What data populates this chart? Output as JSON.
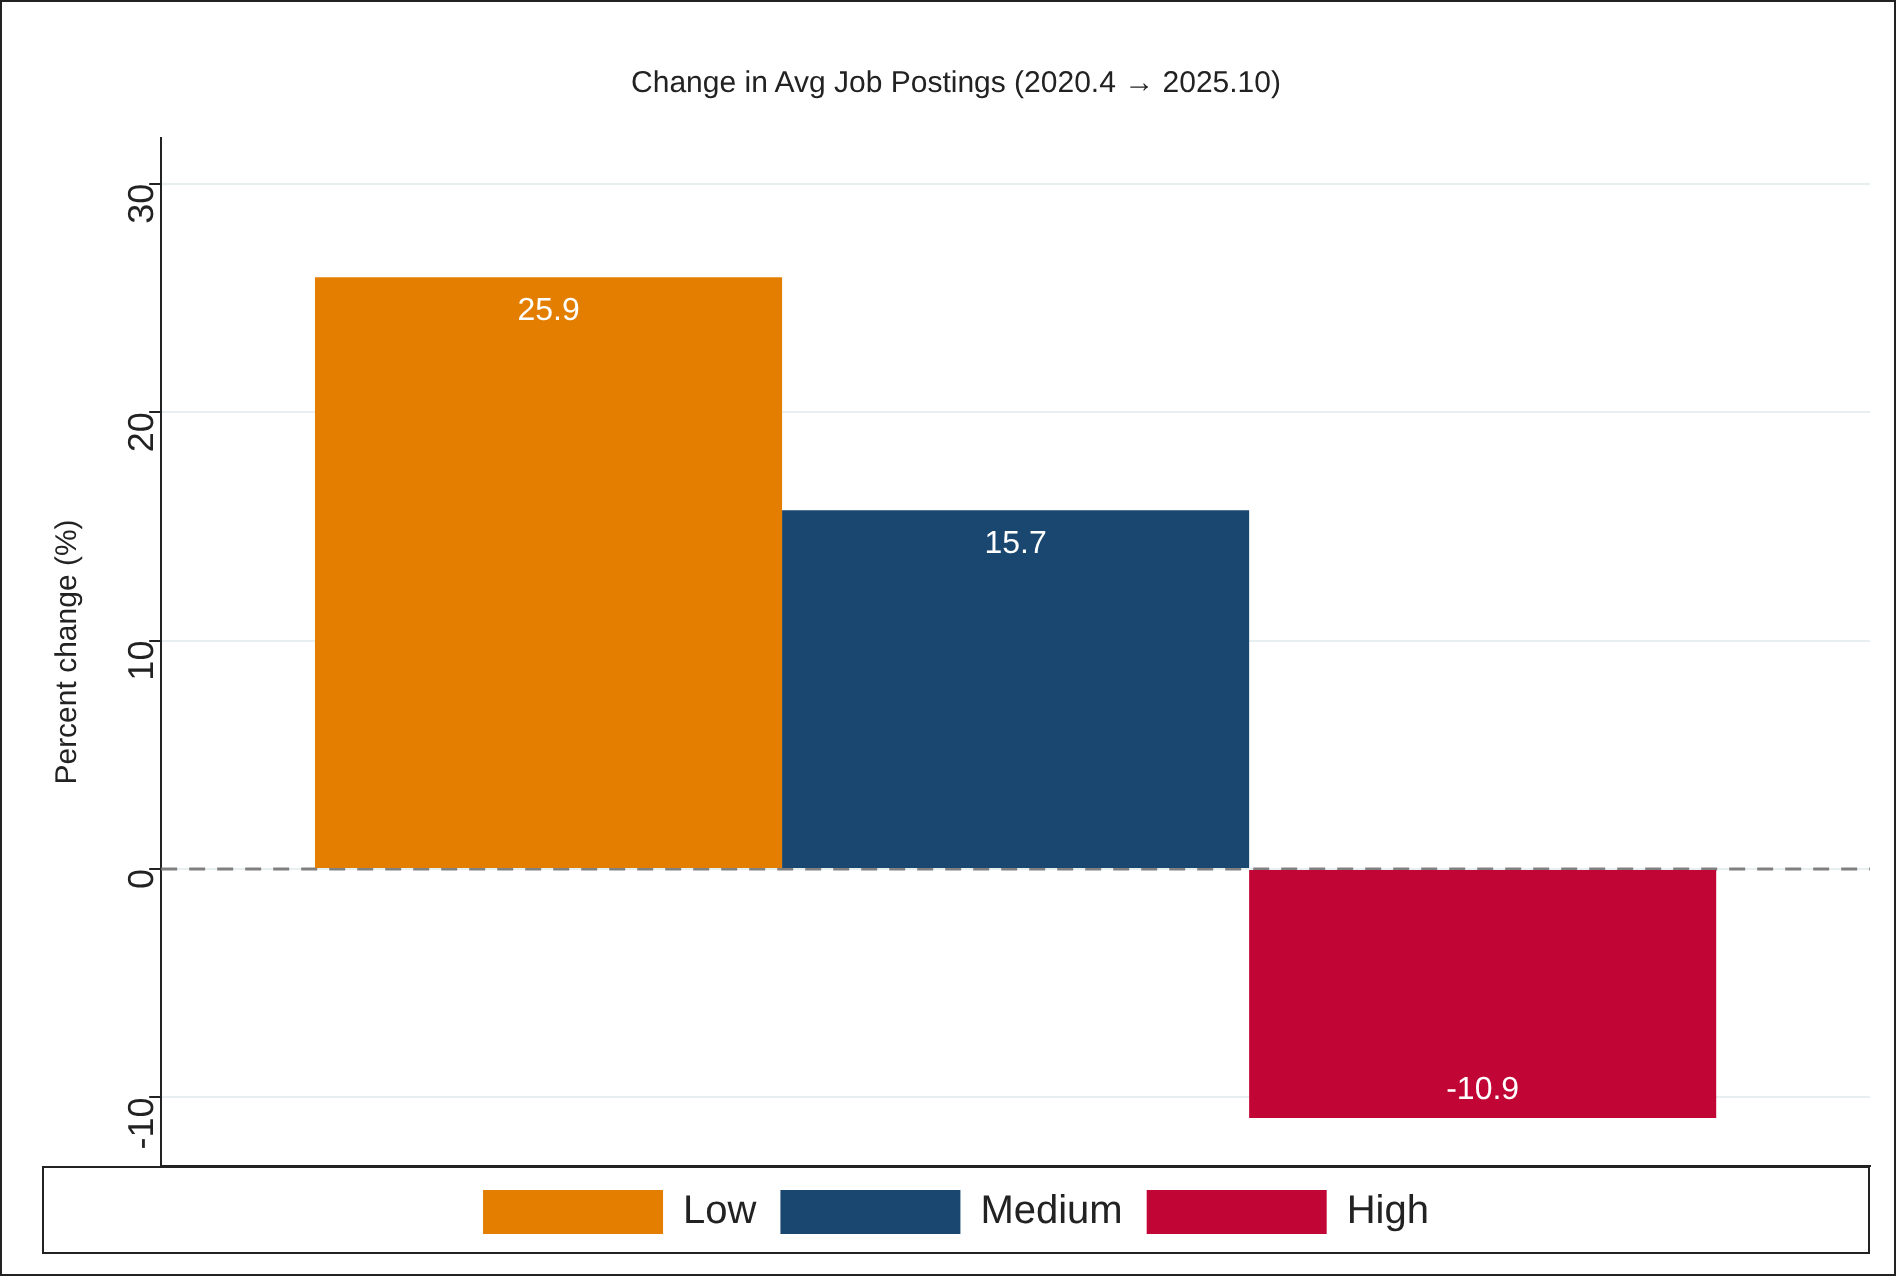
{
  "chart_data": {
    "type": "bar",
    "title": "Change in Avg Job Postings (2020.4 → 2025.10)",
    "ylabel": "Percent change (%)",
    "categories": [
      null
    ],
    "series": [
      {
        "name": "Low",
        "color": "#e37e00",
        "values": [
          25.9
        ]
      },
      {
        "name": "Medium",
        "color": "#1a476f",
        "values": [
          15.7
        ]
      },
      {
        "name": "High",
        "color": "#c10534",
        "values": [
          -10.9
        ]
      }
    ],
    "ylim": [
      -13,
      32
    ],
    "yticks": [
      -10,
      0,
      10,
      20,
      30
    ],
    "grid": "y",
    "legend": "bottom",
    "tick_labels": "y",
    "data_labels": true,
    "ref_lines": [
      {
        "axis": "y",
        "value": 0,
        "color": "#808080",
        "line_style": "dashed"
      }
    ]
  }
}
